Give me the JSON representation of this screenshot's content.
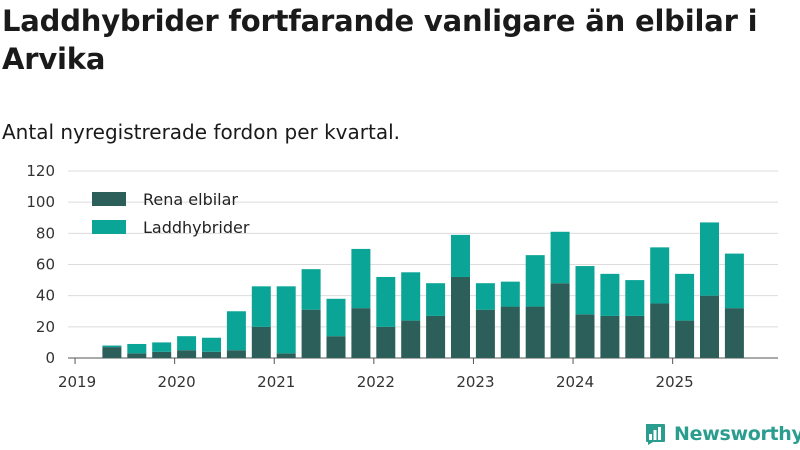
{
  "title": "Laddhybrider fortfarande vanligare än elbilar i Arvika",
  "subtitle": "Antal nyregistrerade fordon per kvartal.",
  "brand": {
    "name": "Newsworthy",
    "icon": "newsworthy-logo-icon",
    "color": "#2a9d8f"
  },
  "chart_data": {
    "type": "bar",
    "stacked": true,
    "ylim": [
      0,
      120
    ],
    "yticks": [
      "0",
      "20",
      "40",
      "60",
      "80",
      "100",
      "120"
    ],
    "grid": true,
    "legend_position": "top-left",
    "year_labels": [
      "2019",
      "2020",
      "2021",
      "2022",
      "2023",
      "2024",
      "2025"
    ],
    "categories": [
      "2019 Q2",
      "2019 Q3",
      "2019 Q4",
      "2020 Q1",
      "2020 Q2",
      "2020 Q3",
      "2020 Q4",
      "2021 Q1",
      "2021 Q2",
      "2021 Q3",
      "2021 Q4",
      "2022 Q1",
      "2022 Q2",
      "2022 Q3",
      "2022 Q4",
      "2023 Q1",
      "2023 Q2",
      "2023 Q3",
      "2023 Q4",
      "2024 Q1",
      "2024 Q2",
      "2024 Q3",
      "2024 Q4",
      "2025 Q1",
      "2025 Q2",
      "2025 Q3"
    ],
    "series": [
      {
        "name": "Rena elbilar",
        "color": "#2d5f5a",
        "values": [
          7,
          3,
          4,
          5,
          4,
          5,
          20,
          3,
          31,
          14,
          32,
          20,
          24,
          27,
          52,
          31,
          33,
          33,
          48,
          28,
          27,
          27,
          35,
          24,
          40,
          32
        ]
      },
      {
        "name": "Laddhybrider",
        "color": "#0aa596",
        "values": [
          1,
          6,
          6,
          9,
          9,
          25,
          26,
          43,
          26,
          24,
          38,
          32,
          31,
          21,
          27,
          17,
          16,
          33,
          33,
          31,
          27,
          23,
          36,
          30,
          47,
          35
        ]
      }
    ]
  }
}
